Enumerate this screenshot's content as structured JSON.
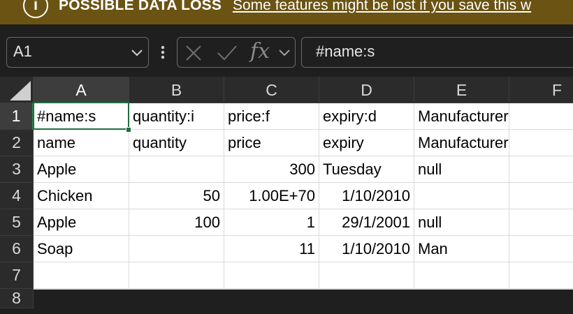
{
  "banner": {
    "icon": "info-icon",
    "icon_glyph": "i",
    "title": "POSSIBLE DATA LOSS",
    "message": "Some features might be lost if you save this w"
  },
  "name_box": {
    "value": "A1"
  },
  "formula_bar": {
    "fx_label": "fx",
    "content": "#name:s"
  },
  "sheet": {
    "columns": [
      "A",
      "B",
      "C",
      "D",
      "E",
      "F"
    ],
    "rows": [
      [
        "#name:s",
        "quantity:i",
        "price:f",
        "expiry:d",
        "Manufacturer:s",
        ""
      ],
      [
        "name",
        "quantity",
        "price",
        "expiry",
        "Manufacturer",
        ""
      ],
      [
        "Apple",
        "",
        "300",
        "Tuesday",
        "null",
        ""
      ],
      [
        "Chicken",
        "50",
        "1.00E+70",
        "1/10/2010",
        "",
        ""
      ],
      [
        "Apple",
        "100",
        "1",
        "29/1/2001",
        "null",
        ""
      ],
      [
        "Soap",
        "",
        "11",
        "1/10/2010",
        "Man",
        ""
      ],
      [
        "",
        "",
        "",
        "",
        "",
        ""
      ],
      [
        "",
        "",
        "",
        "",
        "",
        ""
      ]
    ],
    "row_numbers": [
      "1",
      "2",
      "3",
      "4",
      "5",
      "6",
      "7",
      "8"
    ],
    "numeric_cells": [
      "2,2",
      "3,1",
      "3,2",
      "3,3",
      "4,1",
      "4,2",
      "4,3",
      "5,2",
      "5,3"
    ],
    "active_cell": "A1"
  },
  "colors": {
    "banner_bg": "#6b5313",
    "selection_green": "#1e6e3e",
    "header_bg": "#2b2b2b"
  }
}
